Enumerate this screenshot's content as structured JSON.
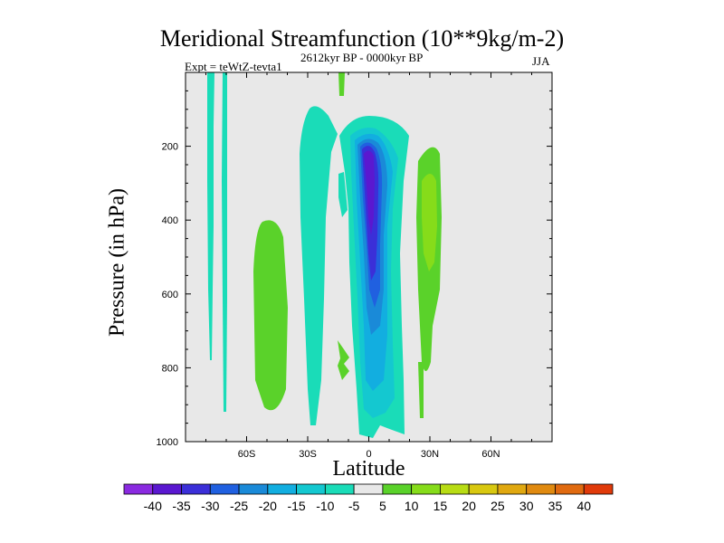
{
  "chart_data": {
    "type": "contour",
    "title": "Meridional Streamfunction (10**9kg/m-2)",
    "subtitle_left": "Expt = teWtZ-tevta1",
    "subtitle_center": "2612kyr BP - 0000kyr BP",
    "subtitle_right": "JJA",
    "xlabel": "Latitude",
    "ylabel": "Pressure (in hPa)",
    "xlim": [
      -90,
      90
    ],
    "ylim": [
      1000,
      0
    ],
    "x_ticks": [
      {
        "value": -60,
        "label": "60S"
      },
      {
        "value": -30,
        "label": "30S"
      },
      {
        "value": 0,
        "label": "0"
      },
      {
        "value": 30,
        "label": "30N"
      },
      {
        "value": 60,
        "label": "60N"
      }
    ],
    "y_ticks": [
      {
        "value": 200,
        "label": "200"
      },
      {
        "value": 400,
        "label": "400"
      },
      {
        "value": 600,
        "label": "600"
      },
      {
        "value": 800,
        "label": "800"
      },
      {
        "value": 1000,
        "label": "1000"
      }
    ],
    "colorbar": {
      "labels": [
        "-40",
        "-35",
        "-30",
        "-25",
        "-20",
        "-15",
        "-10",
        "-5",
        "5",
        "10",
        "15",
        "20",
        "25",
        "30",
        "35",
        "40"
      ],
      "colors": [
        "#8a2ae0",
        "#5a18d0",
        "#3b2fd8",
        "#2060e0",
        "#1a8ad8",
        "#12aee0",
        "#14c8d0",
        "#1adcb8",
        "#e8e8e8",
        "#5ad22a",
        "#86dc1a",
        "#b8dc14",
        "#d8c810",
        "#e0a810",
        "#e08a10",
        "#e06a10",
        "#e03a0a"
      ]
    },
    "features": [
      {
        "name": "tropical-negative-cell",
        "color_level": "-40",
        "lat_range": [
          -3,
          6
        ],
        "p_range": [
          180,
          550
        ]
      },
      {
        "name": "tropical-negative-outer",
        "color_level": "-10",
        "lat_range": [
          -10,
          15
        ],
        "p_range": [
          150,
          980
        ]
      },
      {
        "name": "southern-positive-cell",
        "color_level": "10",
        "lat_range": [
          -54,
          -46
        ],
        "p_range": [
          390,
          920
        ]
      },
      {
        "name": "northern-positive-cell",
        "color_level": "15",
        "lat_range": [
          22,
          34
        ],
        "p_range": [
          190,
          740
        ]
      }
    ]
  }
}
